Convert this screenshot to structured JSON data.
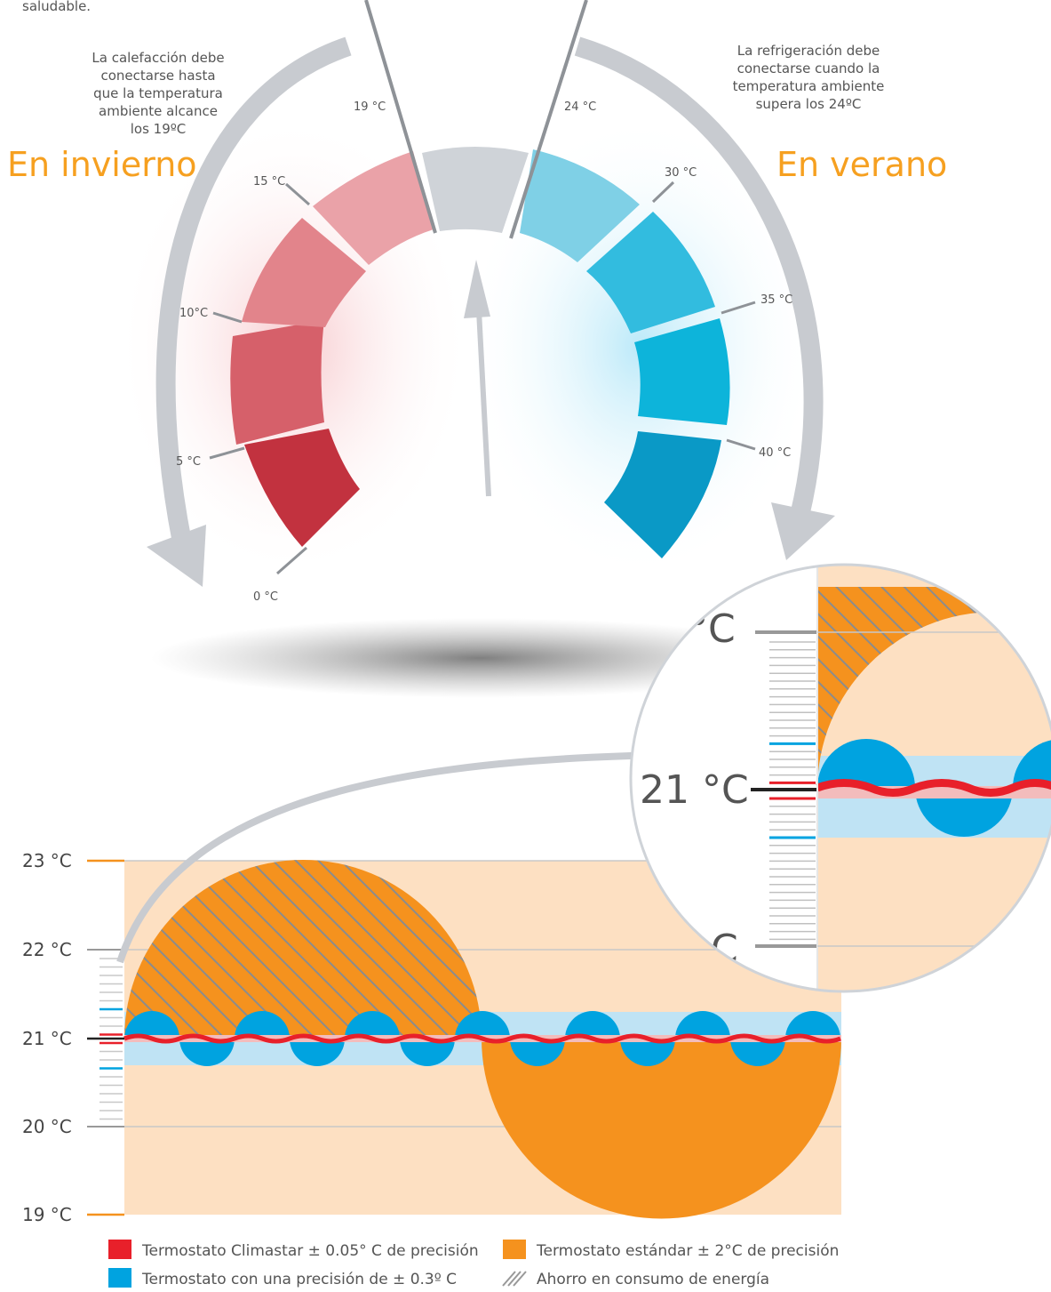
{
  "top_caption": "saludable.",
  "winter": {
    "title": "En invierno",
    "note": [
      "La calefacción debe",
      "conectarse hasta",
      "que la temperatura",
      "ambiente alcance",
      "los 19ºC"
    ]
  },
  "summer": {
    "title": "En verano",
    "note": [
      "La refrigeración debe",
      "conectarse cuando la",
      "temperatura ambiente",
      "supera los 24ºC"
    ]
  },
  "dial_ticks": [
    "0 °C",
    "5 °C",
    "10°C",
    "15 °C",
    "19 °C",
    "24 °C",
    "30 °C",
    "35  °C",
    "40 °C"
  ],
  "chart_axis": [
    "23 °C",
    "22 °C",
    "21 °C",
    "20 °C",
    "19 °C"
  ],
  "zoom_labels": {
    "top": "°C",
    "mid": "21 °C",
    "bottom": "C"
  },
  "legend": {
    "climastar": "Termostato Climastar ± 0.05° C de precisión",
    "standard": "Termostato estándar ± 2°C de precisión",
    "precision03": "Termostato con una precisión de ± 0.3º C",
    "savings": "Ahorro en consumo de energía"
  },
  "colors": {
    "climastar": "#e8202a",
    "standard": "#f5921e",
    "precision03": "#00a3e0",
    "band": "#fde0c2",
    "light_blue": "#bfe3f4",
    "heat": "#d85a64",
    "cool": "#1ab2dc",
    "accent": "#f6a020",
    "arrow": "#c8cbd0"
  }
}
